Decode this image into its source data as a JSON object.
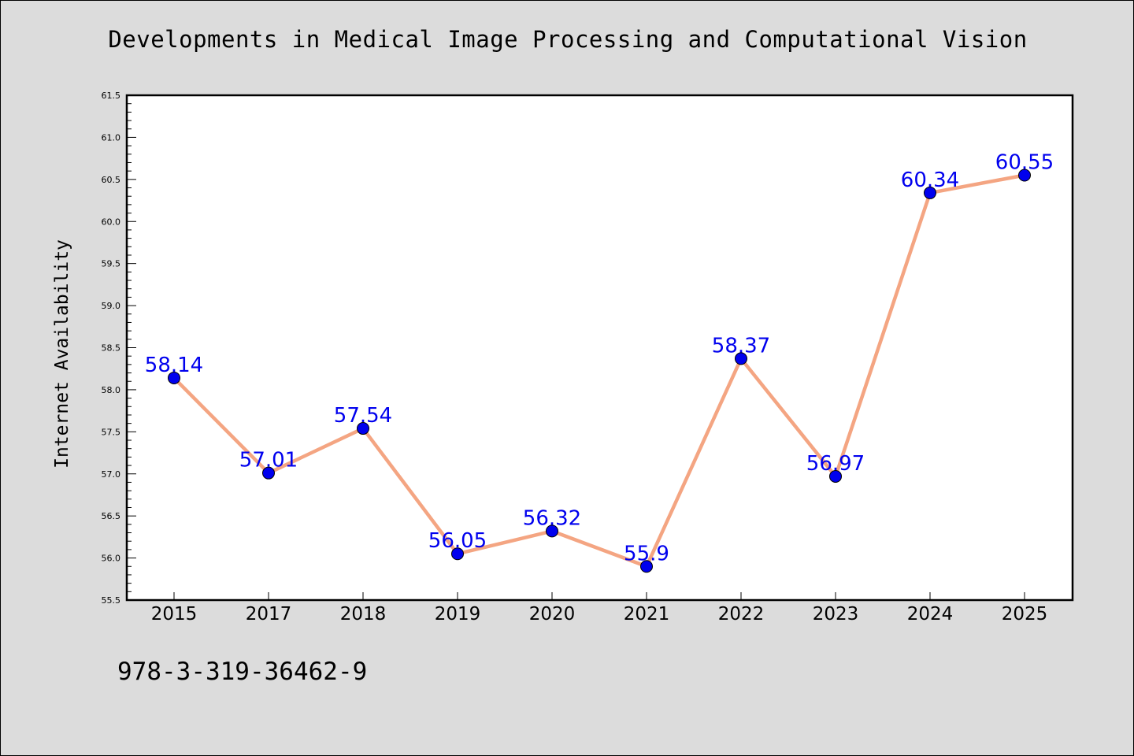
{
  "colors": {
    "background": "#dcdcdc",
    "plot_background": "#ffffff",
    "line": "#f4a582",
    "marker": "#0000ee",
    "data_label": "#0000ee"
  },
  "footer": {
    "isbn": "978-3-319-36462-9"
  },
  "chart_data": {
    "type": "line",
    "title": "Developments in Medical Image Processing and Computational Vision",
    "xlabel": "",
    "ylabel": "Internet Availability",
    "categories": [
      "2015",
      "2017",
      "2018",
      "2019",
      "2020",
      "2021",
      "2022",
      "2023",
      "2024",
      "2025"
    ],
    "series": [
      {
        "values": [
          58.14,
          57.01,
          57.54,
          56.05,
          56.32,
          55.9,
          58.37,
          56.97,
          60.34,
          60.55
        ]
      }
    ],
    "data_labels": [
      "58.14",
      "57.01",
      "57.54",
      "56.05",
      "56.32",
      "55.9",
      "58.37",
      "56.97",
      "60.34",
      "60.55"
    ],
    "ylim": [
      55.5,
      61.5
    ],
    "yticks": [
      "55.5",
      "56.0",
      "56.5",
      "57.0",
      "57.5",
      "58.0",
      "58.5",
      "59.0",
      "59.5",
      "60.0",
      "60.5",
      "61.0",
      "61.5"
    ],
    "grid": false,
    "legend": "none"
  }
}
